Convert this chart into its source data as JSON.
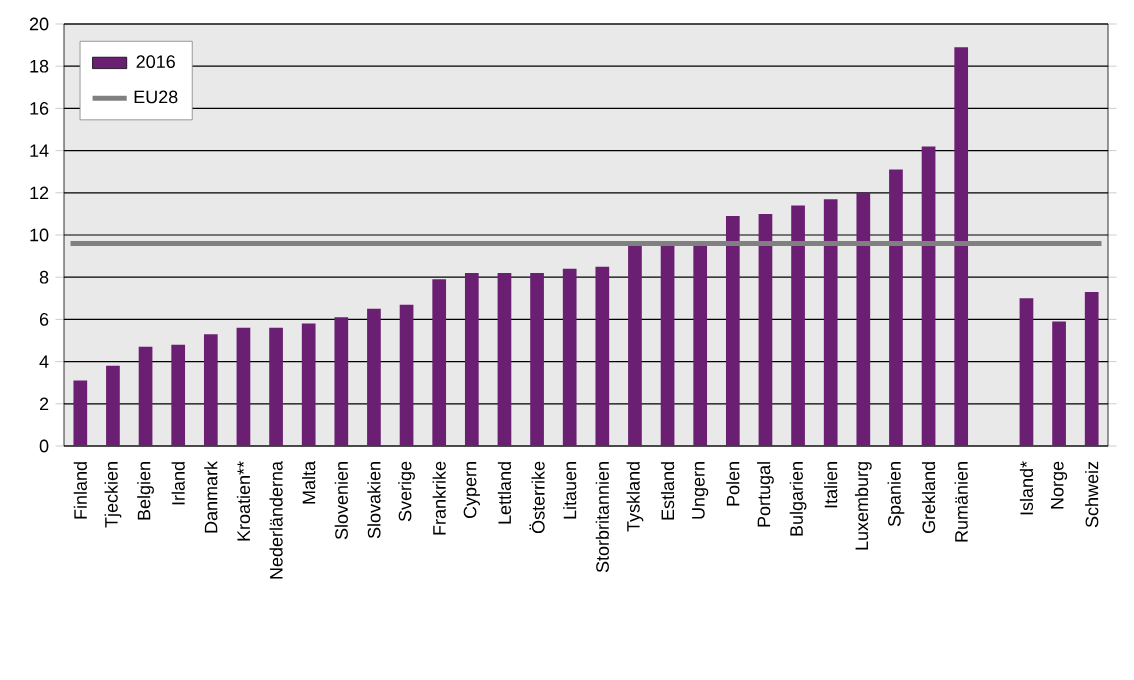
{
  "chart_data": {
    "type": "bar",
    "categories": [
      "Finland",
      "Tjeckien",
      "Belgien",
      "Irland",
      "Danmark",
      "Kroatien**",
      "Nederländerna",
      "Malta",
      "Slovenien",
      "Slovakien",
      "Sverige",
      "Frankrike",
      "Cypern",
      "Lettland",
      "Österrike",
      "Litauen",
      "Storbritannien",
      "Tyskland",
      "Estland",
      "Ungern",
      "Polen",
      "Portugal",
      "Bulgarien",
      "Italien",
      "Luxemburg",
      "Spanien",
      "Grekland",
      "Rumänien",
      null,
      "Island*",
      "Norge",
      "Schweiz"
    ],
    "series": [
      {
        "name": "2016",
        "color": "#6a1f72",
        "values": [
          3.1,
          3.8,
          4.7,
          4.8,
          5.3,
          5.6,
          5.6,
          5.8,
          6.1,
          6.5,
          6.7,
          7.9,
          8.2,
          8.2,
          8.2,
          8.4,
          8.5,
          9.5,
          9.5,
          9.5,
          10.9,
          11.0,
          11.4,
          11.7,
          12.0,
          13.1,
          14.2,
          18.9,
          null,
          7.0,
          5.9,
          7.3
        ]
      }
    ],
    "ref_lines": [
      {
        "axis": "y",
        "value": 9.6,
        "label": "EU28",
        "color": "#808080"
      }
    ],
    "ylim": [
      0,
      20
    ],
    "yticks": [
      0,
      2,
      4,
      6,
      8,
      10,
      12,
      14,
      16,
      18,
      20
    ],
    "grid": "y",
    "legend": "top left"
  }
}
